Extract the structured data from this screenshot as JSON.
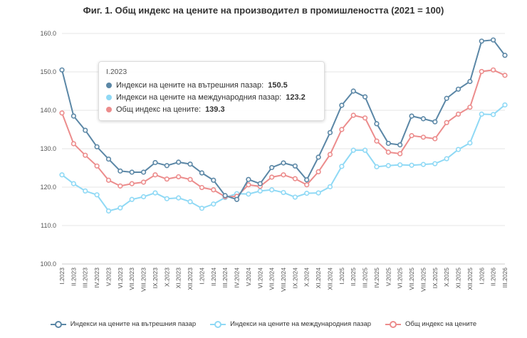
{
  "chart_data": {
    "type": "line",
    "title": "Фиг. 1. Общ индекс на цените на производител в промишлеността (2021 = 100)",
    "xlabel": "",
    "ylabel": "",
    "ylim": [
      100,
      160
    ],
    "yticks": [
      "100.0",
      "110.0",
      "120.0",
      "130.0",
      "140.0",
      "150.0",
      "160.0"
    ],
    "ytick_values": [
      100,
      110,
      120,
      130,
      140,
      150,
      160
    ],
    "grid": "horizontal",
    "legend_position": "bottom",
    "categories": [
      "I.2023",
      "II.2023",
      "III.2023",
      "IV.2023",
      "V.2023",
      "VI.2023",
      "VII.2023",
      "VIII.2023",
      "IX.2023",
      "X.2023",
      "XI.2023",
      "XII.2023",
      "I.2024",
      "II.2024",
      "III.2024",
      "IV.2024",
      "V.2024",
      "VI.2024",
      "VII.2024",
      "VIII.2024",
      "IX.2024",
      "X.2024",
      "XI.2024",
      "XII.2024",
      "I.2025",
      "II.2025",
      "III.2025",
      "IV.2025",
      "V.2025",
      "VI.2025",
      "VII.2025",
      "VIII.2025",
      "IX.2025",
      "X.2025",
      "XI.2025",
      "XII.2025",
      "I.2026",
      "II.2026",
      "III.2026"
    ],
    "series": [
      {
        "name": "Индекси на цените на вътрешния пазар",
        "color": "#5b87a6",
        "values": [
          150.5,
          138.5,
          134.8,
          130.5,
          127.3,
          124.2,
          123.9,
          123.9,
          126.4,
          125.6,
          126.5,
          126.0,
          123.7,
          121.8,
          117.8,
          116.8,
          122.0,
          120.9,
          125.1,
          126.3,
          125.5,
          121.9,
          127.8,
          134.2,
          141.3,
          145.0,
          143.5,
          136.5,
          131.4,
          131.0,
          138.5,
          137.8,
          137.0,
          143.1,
          145.5,
          147.5,
          158.0,
          158.3,
          154.3
        ]
      },
      {
        "name": "Индекси на цените на международния пазар",
        "color": "#8fd9f5",
        "values": [
          123.2,
          120.9,
          119.0,
          118.0,
          113.8,
          114.6,
          116.8,
          117.5,
          118.5,
          117.0,
          117.2,
          116.2,
          114.5,
          115.6,
          117.3,
          118.3,
          118.2,
          119.0,
          119.3,
          118.6,
          117.4,
          118.4,
          118.5,
          120.1,
          125.4,
          129.6,
          129.6,
          125.3,
          125.6,
          125.8,
          125.7,
          125.9,
          126.1,
          127.4,
          129.8,
          131.5,
          139.0,
          138.9,
          141.4
        ]
      },
      {
        "name": "Общ индекс на цените",
        "color": "#ec8c8c",
        "values": [
          139.3,
          131.3,
          128.3,
          125.5,
          121.8,
          120.3,
          120.9,
          121.3,
          123.2,
          122.1,
          122.7,
          122.0,
          119.9,
          119.3,
          117.5,
          117.6,
          120.6,
          120.2,
          122.6,
          123.2,
          122.2,
          120.6,
          124.0,
          128.5,
          135.0,
          138.7,
          138.0,
          132.0,
          129.1,
          128.7,
          133.4,
          133.0,
          132.6,
          136.8,
          139.0,
          140.8,
          150.1,
          150.5,
          149.1
        ]
      }
    ],
    "tooltip": {
      "header": "I.2023",
      "rows": [
        {
          "label": "Индекси на цените на вътрешния пазар:",
          "value": "150.5"
        },
        {
          "label": "Индекси на цените на международния пазар:",
          "value": "123.2"
        },
        {
          "label": "Общ индекс на цените:",
          "value": "139.3"
        }
      ]
    }
  }
}
